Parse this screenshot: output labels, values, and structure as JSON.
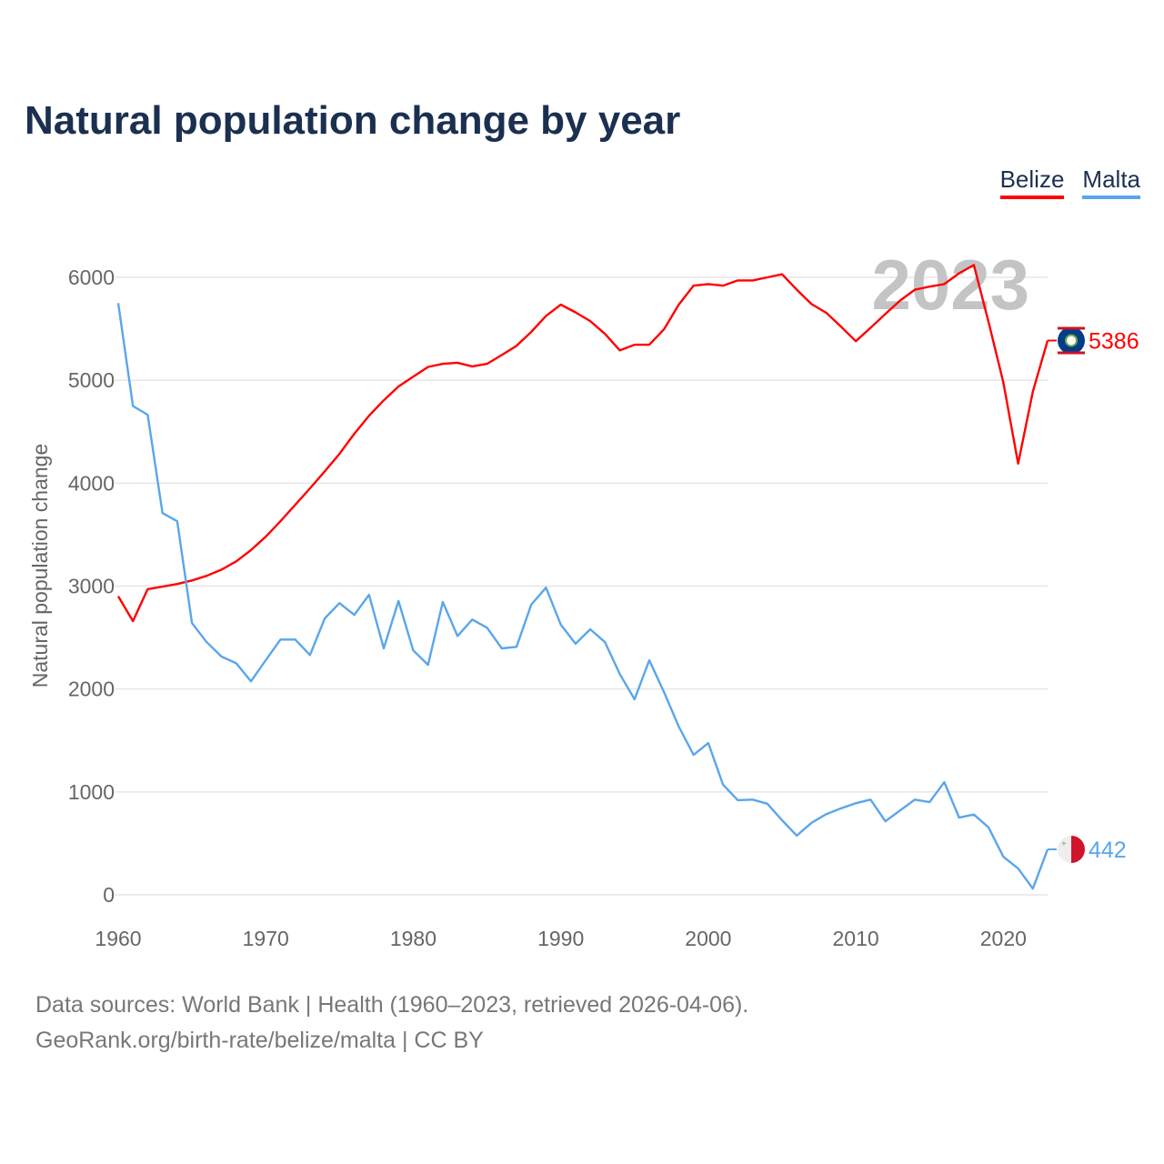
{
  "title": "Natural population change by year",
  "legend": [
    {
      "label": "Belize",
      "color": "#ff0000"
    },
    {
      "label": "Malta",
      "color": "#5aa6ea"
    }
  ],
  "source_line1": "Data sources: World Bank | Health (1960–2023, retrieved 2026-04-06).",
  "source_line2": "GeoRank.org/birth-rate/belize/malta | CC BY",
  "chart_data": {
    "type": "line",
    "title": "Natural population change by year",
    "xlabel": "",
    "ylabel": "Natural population change",
    "xlim": [
      1960,
      2023
    ],
    "ylim": [
      0,
      6000
    ],
    "x_ticks": [
      1960,
      1970,
      1980,
      1990,
      2000,
      2010,
      2020
    ],
    "y_ticks": [
      0,
      1000,
      2000,
      3000,
      4000,
      5000,
      6000
    ],
    "grid": true,
    "legend_position": "top-right",
    "watermark_year": "2023",
    "x": [
      1960,
      1961,
      1962,
      1963,
      1964,
      1965,
      1966,
      1967,
      1968,
      1969,
      1970,
      1971,
      1972,
      1973,
      1974,
      1975,
      1976,
      1977,
      1978,
      1979,
      1980,
      1981,
      1982,
      1983,
      1984,
      1985,
      1986,
      1987,
      1988,
      1989,
      1990,
      1991,
      1992,
      1993,
      1994,
      1995,
      1996,
      1997,
      1998,
      1999,
      2000,
      2001,
      2002,
      2003,
      2004,
      2005,
      2006,
      2007,
      2008,
      2009,
      2010,
      2011,
      2012,
      2013,
      2014,
      2015,
      2016,
      2017,
      2018,
      2019,
      2020,
      2021,
      2022,
      2023
    ],
    "series": [
      {
        "name": "Belize",
        "color": "#ff0000",
        "end_label": "5386",
        "values": [
          2900,
          2660,
          2970,
          2995,
          3020,
          3055,
          3100,
          3160,
          3240,
          3350,
          3480,
          3630,
          3790,
          3950,
          4115,
          4285,
          4480,
          4655,
          4805,
          4940,
          5035,
          5130,
          5160,
          5170,
          5135,
          5160,
          5245,
          5335,
          5470,
          5625,
          5735,
          5660,
          5575,
          5450,
          5290,
          5345,
          5345,
          5495,
          5735,
          5920,
          5935,
          5920,
          5970,
          5970,
          6000,
          6030,
          5880,
          5740,
          5655,
          5520,
          5380,
          5510,
          5645,
          5775,
          5880,
          5910,
          5935,
          6040,
          6120,
          5565,
          4980,
          4190,
          4890,
          5386
        ]
      },
      {
        "name": "Malta",
        "color": "#5aa6ea",
        "end_label": "442",
        "values": [
          5750,
          4750,
          4665,
          3710,
          3630,
          2640,
          2455,
          2315,
          2250,
          2075,
          2280,
          2480,
          2480,
          2330,
          2685,
          2835,
          2720,
          2915,
          2395,
          2855,
          2375,
          2235,
          2845,
          2515,
          2675,
          2595,
          2395,
          2410,
          2820,
          2985,
          2625,
          2440,
          2580,
          2455,
          2145,
          1900,
          2280,
          1970,
          1635,
          1360,
          1475,
          1070,
          920,
          925,
          885,
          725,
          575,
          700,
          785,
          840,
          890,
          925,
          715,
          820,
          925,
          900,
          1095,
          750,
          780,
          655,
          370,
          255,
          60,
          442
        ]
      }
    ]
  }
}
